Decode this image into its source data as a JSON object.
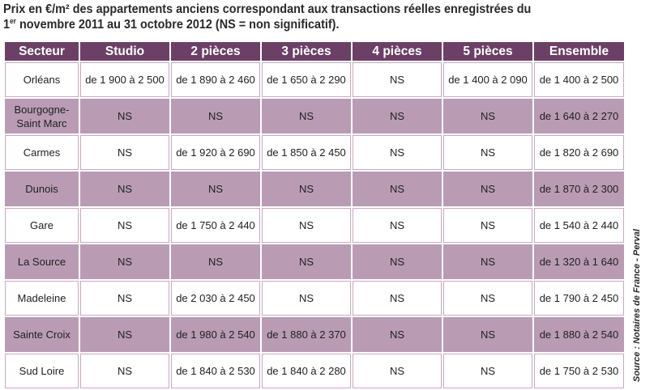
{
  "title": {
    "line1": "Prix en €/m² des appartements anciens correspondant aux transactions réelles enregistrées du",
    "line2_day": "1",
    "line2_sup": "er",
    "line2_rest": " novembre 2011 au 31 octobre 2012 (NS = non significatif)."
  },
  "table": {
    "headers": [
      "Secteur",
      "Studio",
      "2 pièces",
      "3 pièces",
      "4 pièces",
      "5 pièces",
      "Ensemble"
    ],
    "rows": [
      [
        "Orléans",
        "de 1 900 à 2 500",
        "de 1 890 à 2 460",
        "de 1 650 à 2 290",
        "NS",
        "de 1 400 à 2 090",
        "de 1 400 à 2 500"
      ],
      [
        "Bourgogne-\nSaint Marc",
        "NS",
        "NS",
        "NS",
        "NS",
        "NS",
        "de 1 640 à 2 270"
      ],
      [
        "Carmes",
        "NS",
        "de 1 920 à 2 690",
        "de 1 850 à 2 450",
        "NS",
        "NS",
        "de 1 820 à 2 690"
      ],
      [
        "Dunois",
        "NS",
        "NS",
        "NS",
        "NS",
        "NS",
        "de 1 870 à 2 300"
      ],
      [
        "Gare",
        "NS",
        "de 1 750 à 2 440",
        "NS",
        "NS",
        "NS",
        "de 1 540 à 2 440"
      ],
      [
        "La Source",
        "NS",
        "NS",
        "NS",
        "NS",
        "NS",
        "de 1 320 à 1 640"
      ],
      [
        "Madeleine",
        "NS",
        "de 2 030 à 2 450",
        "NS",
        "NS",
        "NS",
        "de 1 790 à 2 450"
      ],
      [
        "Sainte Croix",
        "NS",
        "de 1 980 à 2 540",
        "de 1 880 à 2 370",
        "NS",
        "NS",
        "de 1 880 à 2 540"
      ],
      [
        "Sud Loire",
        "NS",
        "de 1 840 à 2 530",
        "de 1 840 à 2 280",
        "NS",
        "NS",
        "de 1 750 à 2 530"
      ]
    ]
  },
  "source": "Source : Notaires de France - Perval",
  "colors": {
    "header_bg": "#6c4066",
    "alt_row_bg": "#b99cb4",
    "cell_border": "#c9a8c3"
  }
}
